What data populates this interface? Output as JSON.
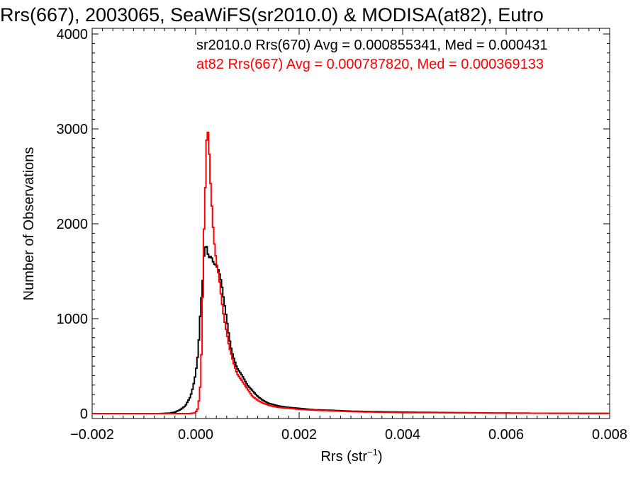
{
  "chart_data": {
    "type": "line",
    "title": "Rrs(667), 2003065, SeaWiFS(sr2010.0) & MODISA(at82), Eutro",
    "xlabel_main": "Rrs (str",
    "xlabel_sup": "−1",
    "xlabel_close": ")",
    "ylabel": "Number of Observations",
    "xlim": [
      -0.002,
      0.008
    ],
    "ylim": [
      0,
      4000
    ],
    "x_ticks": [
      -0.002,
      0.0,
      0.002,
      0.004,
      0.006,
      0.008
    ],
    "x_tick_labels": [
      "−0.002",
      "0.000",
      "0.002",
      "0.004",
      "0.006",
      "0.008"
    ],
    "y_ticks": [
      0,
      1000,
      2000,
      3000,
      4000
    ],
    "y_tick_labels": [
      "0",
      "1000",
      "2000",
      "3000",
      "4000"
    ],
    "grid": false,
    "legend": [
      {
        "text": "sr2010.0 Rrs(670) Avg = 0.000855341, Med = 0.000431",
        "color": "#000000"
      },
      {
        "text": "at82 Rrs(667) Avg = 0.000787820, Med = 0.000369133",
        "color": "#ff0000"
      }
    ],
    "legend_placement": "top-right",
    "series": [
      {
        "color": "#000000",
        "points": [
          [
            -0.002,
            0
          ],
          [
            -0.0007,
            0
          ],
          [
            -0.0005,
            5
          ],
          [
            -0.0004,
            15
          ],
          [
            -0.0003,
            40
          ],
          [
            -0.0002,
            80
          ],
          [
            -0.0001,
            180
          ],
          [
            -5e-05,
            280
          ],
          [
            0.0,
            420
          ],
          [
            5e-05,
            650
          ],
          [
            0.0001,
            1150
          ],
          [
            0.00013,
            1320
          ],
          [
            0.00016,
            1650
          ],
          [
            0.0002,
            1800
          ],
          [
            0.00025,
            1640
          ],
          [
            0.0003,
            1660
          ],
          [
            0.00035,
            1580
          ],
          [
            0.0004,
            1560
          ],
          [
            0.00045,
            1500
          ],
          [
            0.0005,
            1380
          ],
          [
            0.00055,
            1180
          ],
          [
            0.0006,
            1000
          ],
          [
            0.00065,
            800
          ],
          [
            0.0007,
            650
          ],
          [
            0.00075,
            560
          ],
          [
            0.0008,
            480
          ],
          [
            0.0009,
            400
          ],
          [
            0.001,
            300
          ],
          [
            0.0011,
            240
          ],
          [
            0.0012,
            180
          ],
          [
            0.0013,
            140
          ],
          [
            0.0014,
            110
          ],
          [
            0.0015,
            95
          ],
          [
            0.0016,
            80
          ],
          [
            0.0018,
            65
          ],
          [
            0.002,
            55
          ],
          [
            0.0023,
            40
          ],
          [
            0.0026,
            35
          ],
          [
            0.003,
            25
          ],
          [
            0.0035,
            20
          ],
          [
            0.004,
            15
          ],
          [
            0.005,
            10
          ],
          [
            0.006,
            5
          ],
          [
            0.007,
            3
          ],
          [
            0.008,
            2
          ]
        ]
      },
      {
        "color": "#ff0000",
        "points": [
          [
            -0.002,
            0
          ],
          [
            -0.0003,
            0
          ],
          [
            -0.0001,
            0
          ],
          [
            0.0,
            10
          ],
          [
            5e-05,
            60
          ],
          [
            0.0001,
            350
          ],
          [
            0.00013,
            1000
          ],
          [
            0.00016,
            1900
          ],
          [
            0.0002,
            2600
          ],
          [
            0.00022,
            3050
          ],
          [
            0.00025,
            2900
          ],
          [
            0.00028,
            2500
          ],
          [
            0.0003,
            2300
          ],
          [
            0.00035,
            1850
          ],
          [
            0.0004,
            1600
          ],
          [
            0.00045,
            1450
          ],
          [
            0.0005,
            1200
          ],
          [
            0.00055,
            1000
          ],
          [
            0.0006,
            850
          ],
          [
            0.00065,
            700
          ],
          [
            0.0007,
            600
          ],
          [
            0.00075,
            500
          ],
          [
            0.0008,
            420
          ],
          [
            0.0009,
            340
          ],
          [
            0.001,
            260
          ],
          [
            0.0011,
            180
          ],
          [
            0.0012,
            140
          ],
          [
            0.0013,
            110
          ],
          [
            0.0014,
            90
          ],
          [
            0.0015,
            75
          ],
          [
            0.0016,
            65
          ],
          [
            0.0018,
            55
          ],
          [
            0.002,
            45
          ],
          [
            0.0023,
            35
          ],
          [
            0.0026,
            30
          ],
          [
            0.003,
            20
          ],
          [
            0.0035,
            15
          ],
          [
            0.004,
            10
          ],
          [
            0.005,
            8
          ],
          [
            0.006,
            5
          ],
          [
            0.007,
            3
          ],
          [
            0.008,
            2
          ]
        ]
      }
    ]
  }
}
